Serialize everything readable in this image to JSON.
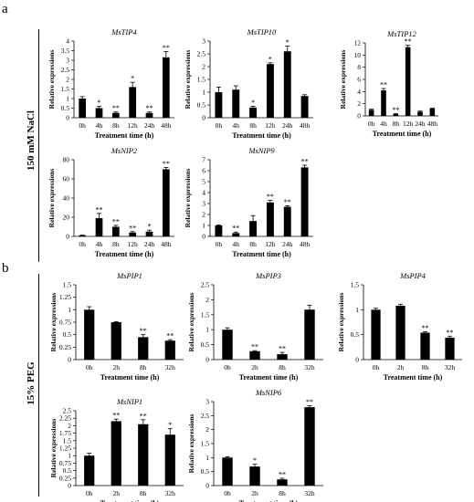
{
  "panels": [
    {
      "letter": "a",
      "side_label": "150 mM NaCl"
    },
    {
      "letter": "b",
      "side_label": "15% PEG"
    }
  ],
  "chart_data": [
    {
      "type": "bar",
      "panel": "a",
      "title": "MsTIP4",
      "xlabel": "Treatment time (h)",
      "ylabel": "Relative expressions",
      "categories": [
        "0h",
        "4h",
        "8h",
        "12h",
        "24h",
        "48h"
      ],
      "values": [
        1.0,
        0.5,
        0.25,
        1.6,
        0.25,
        3.15
      ],
      "errors": [
        0.1,
        0.1,
        0.05,
        0.25,
        0.05,
        0.3
      ],
      "significance": [
        "",
        "*",
        "**",
        "*",
        "**",
        "**"
      ],
      "ylim": [
        0,
        4
      ],
      "yticks": [
        0,
        0.5,
        1,
        1.5,
        2,
        2.5,
        3,
        3.5,
        4
      ]
    },
    {
      "type": "bar",
      "panel": "a",
      "title": "MsTIP10",
      "xlabel": "Treatment time (h)",
      "ylabel": "Relative expressions",
      "categories": [
        "0h",
        "4h",
        "8h",
        "12h",
        "24h",
        "48h"
      ],
      "values": [
        1.0,
        1.1,
        0.4,
        2.1,
        2.6,
        0.85
      ],
      "errors": [
        0.2,
        0.15,
        0.05,
        0.05,
        0.2,
        0.05
      ],
      "significance": [
        "",
        "",
        "*",
        "*",
        "*",
        ""
      ],
      "ylim": [
        0,
        3
      ],
      "yticks": [
        0,
        0.5,
        1,
        1.5,
        2,
        2.5,
        3
      ]
    },
    {
      "type": "bar",
      "panel": "a",
      "title": "MsTIP12",
      "xlabel": "Treatment time (h)",
      "ylabel": "Relative expressions",
      "categories": [
        "0h",
        "4h",
        "8h",
        "12h",
        "24h",
        "48h"
      ],
      "values": [
        1.0,
        4.2,
        0.3,
        11.3,
        0.7,
        1.2
      ],
      "errors": [
        0.1,
        0.3,
        0.1,
        0.3,
        0.1,
        0.1
      ],
      "significance": [
        "",
        "**",
        "**",
        "**",
        "",
        ""
      ],
      "ylim": [
        0,
        12
      ],
      "yticks": [
        0,
        2,
        4,
        6,
        8,
        10,
        12
      ]
    },
    {
      "type": "bar",
      "panel": "a",
      "title": "MsNIP2",
      "xlabel": "Treatment time (h)",
      "ylabel": "Relative expressions",
      "categories": [
        "0h",
        "4h",
        "8h",
        "12h",
        "24h",
        "48h"
      ],
      "values": [
        1.0,
        19,
        10,
        4,
        5,
        70
      ],
      "errors": [
        0.3,
        5,
        1.5,
        1,
        1.5,
        2
      ],
      "significance": [
        "",
        "**",
        "**",
        "**",
        "*",
        "**"
      ],
      "ylim": [
        0,
        80
      ],
      "yticks": [
        0,
        20,
        40,
        60,
        80
      ]
    },
    {
      "type": "bar",
      "panel": "a",
      "title": "MsNIP9",
      "xlabel": "Treatment time (h)",
      "ylabel": "Relative expressions",
      "categories": [
        "0h",
        "4h",
        "8h",
        "12h",
        "24h",
        "48h"
      ],
      "values": [
        1.0,
        0.3,
        1.4,
        3.1,
        2.7,
        6.3
      ],
      "errors": [
        0.05,
        0.1,
        0.5,
        0.2,
        0.1,
        0.2
      ],
      "significance": [
        "",
        "**",
        "",
        "**",
        "**",
        "**"
      ],
      "ylim": [
        0,
        7
      ],
      "yticks": [
        0,
        1,
        2,
        3,
        4,
        5,
        6,
        7
      ]
    },
    {
      "type": "bar",
      "panel": "b",
      "title": "MsPIP1",
      "xlabel": "Treatment time (h)",
      "ylabel": "Relative expressions",
      "categories": [
        "0h",
        "2h",
        "8h",
        "32h"
      ],
      "values": [
        1.0,
        0.75,
        0.45,
        0.38
      ],
      "errors": [
        0.06,
        0.01,
        0.05,
        0.02
      ],
      "significance": [
        "",
        "",
        "**",
        "**"
      ],
      "ylim": [
        0,
        1.5
      ],
      "yticks": [
        0,
        0.25,
        0.5,
        0.75,
        1,
        1.25,
        1.5
      ]
    },
    {
      "type": "bar",
      "panel": "b",
      "title": "MsPIP3",
      "xlabel": "Treatment time (h)",
      "ylabel": "Relative expressions",
      "categories": [
        "0h",
        "2h",
        "8h",
        "32h"
      ],
      "values": [
        1.0,
        0.28,
        0.18,
        1.67
      ],
      "errors": [
        0.06,
        0.02,
        0.06,
        0.15
      ],
      "significance": [
        "",
        "**",
        "**",
        ""
      ],
      "ylim": [
        0,
        2.5
      ],
      "yticks": [
        0,
        0.5,
        1,
        1.5,
        2,
        2.5
      ]
    },
    {
      "type": "bar",
      "panel": "b",
      "title": "MsPIP4",
      "xlabel": "Treatment time (h)",
      "ylabel": "Relative expressions",
      "categories": [
        "0h",
        "2h",
        "8h",
        "32h"
      ],
      "values": [
        1.0,
        1.08,
        0.54,
        0.44
      ],
      "errors": [
        0.03,
        0.03,
        0.02,
        0.03
      ],
      "significance": [
        "",
        "",
        "**",
        "**"
      ],
      "ylim": [
        0,
        1.5
      ],
      "yticks": [
        0,
        0.5,
        1,
        1.5
      ]
    },
    {
      "type": "bar",
      "panel": "b",
      "title": "MsNIP1",
      "xlabel": "Treatment time (h)",
      "ylabel": "Relative expressions",
      "categories": [
        "0h",
        "2h",
        "8h",
        "32h"
      ],
      "values": [
        1.0,
        2.15,
        2.05,
        1.7
      ],
      "errors": [
        0.08,
        0.07,
        0.15,
        0.2
      ],
      "significance": [
        "",
        "**",
        "**",
        "*"
      ],
      "ylim": [
        0,
        2.5
      ],
      "yticks": [
        0,
        0.25,
        0.5,
        0.75,
        1,
        1.25,
        1.5,
        1.75,
        2,
        2.25,
        2.5
      ]
    },
    {
      "type": "bar",
      "panel": "b",
      "title": "MsNIP6",
      "xlabel": "Treatment time (h)",
      "ylabel": "Relative expressions",
      "categories": [
        "0h",
        "2h",
        "8h",
        "32h"
      ],
      "values": [
        1.0,
        0.68,
        0.22,
        2.8
      ],
      "errors": [
        0.03,
        0.08,
        0.04,
        0.05
      ],
      "significance": [
        "",
        "*",
        "**",
        "**"
      ],
      "ylim": [
        0,
        3
      ],
      "yticks": [
        0,
        0.5,
        1,
        1.5,
        2,
        2.5,
        3
      ]
    }
  ]
}
